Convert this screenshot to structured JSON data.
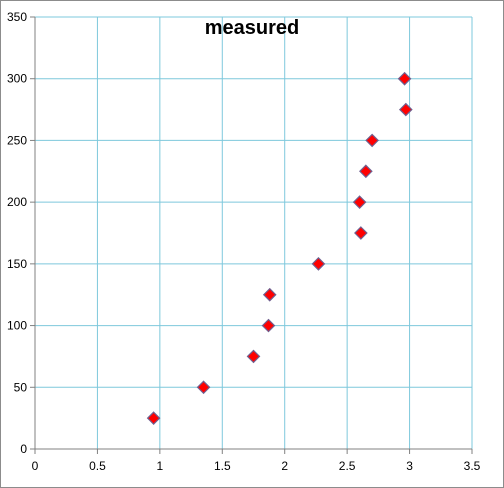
{
  "chart_data": {
    "type": "scatter",
    "title": "measured",
    "xlabel": "",
    "ylabel": "",
    "xlim": [
      0,
      3.5
    ],
    "ylim": [
      0,
      350
    ],
    "x_ticks": [
      0,
      0.5,
      1,
      1.5,
      2,
      2.5,
      3,
      3.5
    ],
    "x_tick_labels": [
      "0",
      "0.5",
      "1",
      "1.5",
      "2",
      "2.5",
      "3",
      "3.5"
    ],
    "y_ticks": [
      0,
      50,
      100,
      150,
      200,
      250,
      300,
      350
    ],
    "y_tick_labels": [
      "0",
      "50",
      "100",
      "150",
      "200",
      "250",
      "300",
      "350"
    ],
    "grid": true,
    "grid_color": "#7ec8dc",
    "marker": "diamond",
    "marker_fill": "#ff0000",
    "marker_edge": "#6f5f8f",
    "series": [
      {
        "points": [
          {
            "x": 0.95,
            "y": 25
          },
          {
            "x": 1.35,
            "y": 50
          },
          {
            "x": 1.75,
            "y": 75
          },
          {
            "x": 1.87,
            "y": 100
          },
          {
            "x": 1.88,
            "y": 125
          },
          {
            "x": 2.27,
            "y": 150
          },
          {
            "x": 2.61,
            "y": 175
          },
          {
            "x": 2.6,
            "y": 200
          },
          {
            "x": 2.65,
            "y": 225
          },
          {
            "x": 2.7,
            "y": 250
          },
          {
            "x": 2.97,
            "y": 275
          },
          {
            "x": 2.96,
            "y": 300
          }
        ]
      }
    ]
  }
}
